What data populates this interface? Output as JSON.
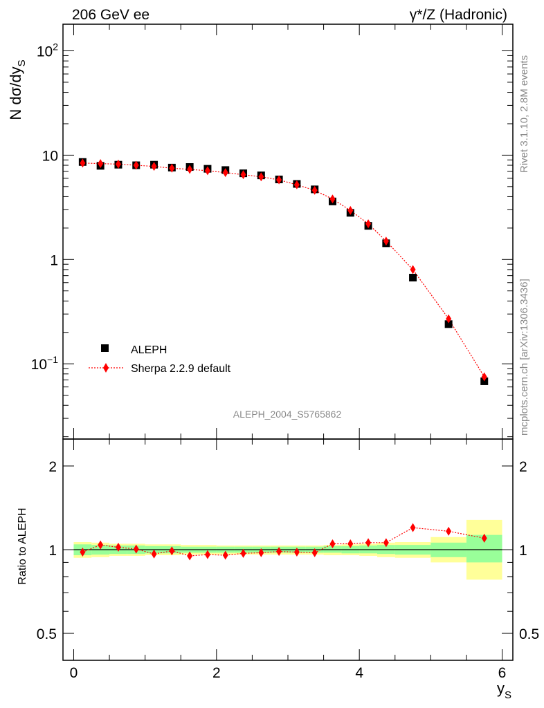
{
  "header": {
    "left_label": "206 GeV ee",
    "right_label": "γ*/Z (Hadronic)"
  },
  "side_labels": {
    "rivet": "Rivet 3.1.10,  2.8M events",
    "mcplots": "mcplots.cern.ch [arXiv:1306.3436]"
  },
  "watermark": "ALEPH_2004_S5765862",
  "colors": {
    "data": "#000000",
    "mc": "#ff0000",
    "band_inner": "#99ff99",
    "band_outer": "#ffff99"
  },
  "chart_data": [
    {
      "type": "scatter",
      "ylabel": "N dσ/dy_S",
      "xlabel": "y_S",
      "xlim": [
        -0.15,
        6.15
      ],
      "ylim": [
        0.019,
        180
      ],
      "log_y": true,
      "yticks": [
        {
          "value": 100,
          "label": "10",
          "sup": "2"
        },
        {
          "value": 10,
          "label": "10",
          "sup": ""
        },
        {
          "value": 1,
          "label": "1",
          "sup": ""
        },
        {
          "value": 0.1,
          "label": "10",
          "sup": "−1"
        }
      ],
      "legend_position": "bottom-left",
      "series": [
        {
          "name": "ALEPH",
          "marker": "square",
          "x": [
            0.125,
            0.375,
            0.625,
            0.875,
            1.125,
            1.375,
            1.625,
            1.875,
            2.125,
            2.375,
            2.625,
            2.875,
            3.125,
            3.375,
            3.625,
            3.875,
            4.125,
            4.375,
            4.75,
            5.25,
            5.75
          ],
          "y": [
            8.6,
            7.9,
            8.1,
            8.0,
            8.1,
            7.6,
            7.7,
            7.4,
            7.2,
            6.7,
            6.4,
            5.85,
            5.3,
            4.7,
            3.6,
            2.8,
            2.1,
            1.43,
            0.67,
            0.24,
            0.068
          ]
        },
        {
          "name": "Sherpa 2.2.9 default",
          "marker": "diamond",
          "line": "dotted",
          "x": [
            0.125,
            0.375,
            0.625,
            0.875,
            1.125,
            1.375,
            1.625,
            1.875,
            2.125,
            2.375,
            2.625,
            2.875,
            3.125,
            3.375,
            3.625,
            3.875,
            4.125,
            4.375,
            4.75,
            5.25,
            5.75
          ],
          "y": [
            8.4,
            8.3,
            8.2,
            8.0,
            7.8,
            7.5,
            7.3,
            7.1,
            6.8,
            6.5,
            6.2,
            5.8,
            5.2,
            4.6,
            3.8,
            2.95,
            2.2,
            1.5,
            0.8,
            0.27,
            0.075
          ]
        }
      ]
    },
    {
      "type": "scatter",
      "ylabel": "Ratio to ALEPH",
      "xlabel": "y_S",
      "xlim": [
        -0.15,
        6.15
      ],
      "ylim": [
        0.4,
        2.5
      ],
      "log_y": true,
      "yticks": [
        {
          "value": 2,
          "label": "2"
        },
        {
          "value": 1,
          "label": "1"
        },
        {
          "value": 0.5,
          "label": "0.5"
        }
      ],
      "xticks": [
        {
          "value": 0,
          "label": "0"
        },
        {
          "value": 2,
          "label": "2"
        },
        {
          "value": 4,
          "label": "4"
        },
        {
          "value": 6,
          "label": "6"
        }
      ],
      "bands": {
        "edges": [
          0,
          0.25,
          0.5,
          0.75,
          1.0,
          1.25,
          1.5,
          1.75,
          2.0,
          2.25,
          2.5,
          2.75,
          3.0,
          3.25,
          3.5,
          3.75,
          4.0,
          4.25,
          4.5,
          5.0,
          5.5,
          6.0
        ],
        "inner": [
          [
            0.955,
            1.045
          ],
          [
            0.96,
            1.04
          ],
          [
            0.965,
            1.035
          ],
          [
            0.965,
            1.035
          ],
          [
            0.97,
            1.03
          ],
          [
            0.97,
            1.03
          ],
          [
            0.975,
            1.025
          ],
          [
            0.975,
            1.025
          ],
          [
            0.975,
            1.025
          ],
          [
            0.975,
            1.025
          ],
          [
            0.975,
            1.025
          ],
          [
            0.975,
            1.025
          ],
          [
            0.975,
            1.025
          ],
          [
            0.975,
            1.025
          ],
          [
            0.975,
            1.03
          ],
          [
            0.97,
            1.03
          ],
          [
            0.97,
            1.035
          ],
          [
            0.965,
            1.04
          ],
          [
            0.96,
            1.04
          ],
          [
            0.94,
            1.06
          ],
          [
            0.9,
            1.13
          ]
        ],
        "outer": [
          [
            0.935,
            1.065
          ],
          [
            0.94,
            1.06
          ],
          [
            0.95,
            1.05
          ],
          [
            0.95,
            1.05
          ],
          [
            0.955,
            1.045
          ],
          [
            0.955,
            1.045
          ],
          [
            0.96,
            1.04
          ],
          [
            0.96,
            1.04
          ],
          [
            0.96,
            1.035
          ],
          [
            0.96,
            1.035
          ],
          [
            0.96,
            1.035
          ],
          [
            0.96,
            1.035
          ],
          [
            0.96,
            1.035
          ],
          [
            0.96,
            1.035
          ],
          [
            0.955,
            1.04
          ],
          [
            0.955,
            1.045
          ],
          [
            0.95,
            1.05
          ],
          [
            0.94,
            1.06
          ],
          [
            0.935,
            1.065
          ],
          [
            0.9,
            1.11
          ],
          [
            0.78,
            1.28
          ]
        ]
      },
      "series": [
        {
          "name": "Sherpa 2.2.9 default",
          "marker": "diamond",
          "line": "dotted",
          "x": [
            0.125,
            0.375,
            0.625,
            0.875,
            1.125,
            1.375,
            1.625,
            1.875,
            2.125,
            2.375,
            2.625,
            2.875,
            3.125,
            3.375,
            3.625,
            3.875,
            4.125,
            4.375,
            4.75,
            5.25,
            5.75
          ],
          "y": [
            0.98,
            1.04,
            1.02,
            1.005,
            0.965,
            0.99,
            0.95,
            0.96,
            0.955,
            0.97,
            0.975,
            0.985,
            0.98,
            0.975,
            1.05,
            1.05,
            1.06,
            1.06,
            1.2,
            1.165,
            1.1
          ]
        }
      ]
    }
  ]
}
